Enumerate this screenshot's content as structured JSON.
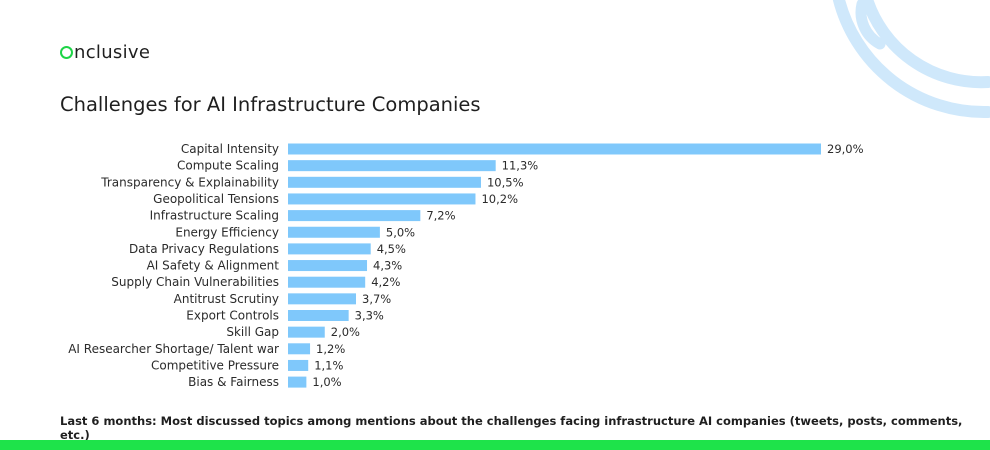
{
  "brand": {
    "name": "nclusive",
    "accent": "#1ed447"
  },
  "title": "Challenges for AI Infrastructure Companies",
  "footnote": "Last 6 months: Most discussed topics among mentions about the challenges facing infrastructure AI companies (tweets, posts, comments, etc.)",
  "colors": {
    "bar": "#7fc8fb",
    "decor": "#cfe8fb",
    "bottom_bar": "#1ee34a"
  },
  "chart_data": {
    "type": "bar",
    "orientation": "horizontal",
    "categories": [
      "Capital Intensity",
      "Compute Scaling",
      "Transparency & Explainability",
      "Geopolitical Tensions",
      "Infrastructure Scaling",
      "Energy Efficiency",
      "Data Privacy Regulations",
      "AI Safety & Alignment",
      "Supply Chain Vulnerabilities",
      "Antitrust Scrutiny",
      "Export Controls",
      "Skill Gap",
      "AI Researcher Shortage/ Talent war",
      "Competitive Pressure",
      "Bias & Fairness"
    ],
    "values": [
      29.0,
      11.3,
      10.5,
      10.2,
      7.2,
      5.0,
      4.5,
      4.3,
      4.2,
      3.7,
      3.3,
      2.0,
      1.2,
      1.1,
      1.0
    ],
    "value_labels": [
      "29,0%",
      "11,3%",
      "10,5%",
      "10,2%",
      "7,2%",
      "5,0%",
      "4,5%",
      "4,3%",
      "4,2%",
      "3,7%",
      "3,3%",
      "2,0%",
      "1,2%",
      "1,1%",
      "1,0%"
    ],
    "unit": "%",
    "grid": false,
    "legend": "none"
  }
}
